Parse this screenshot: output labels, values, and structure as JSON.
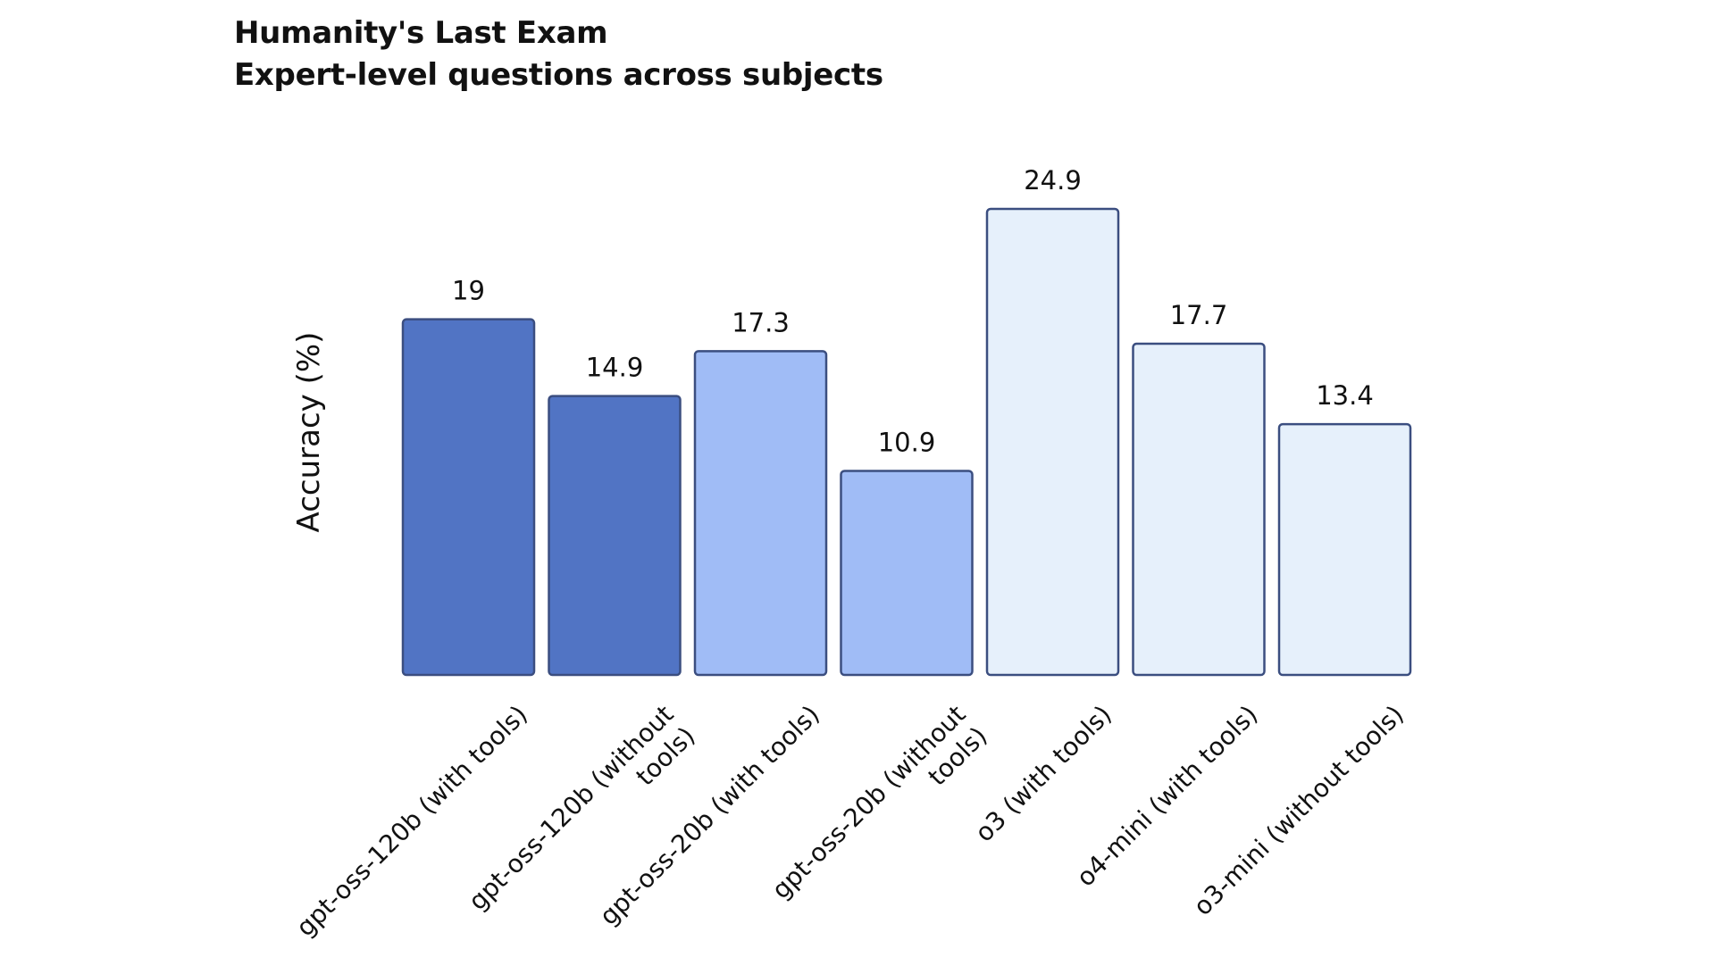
{
  "chart_data": {
    "type": "bar",
    "title_lines": [
      "Humanity's Last Exam",
      "Expert-level questions across subjects"
    ],
    "ylabel": "Accuracy (%)",
    "xlabel": "",
    "ylim": [
      0,
      24.9
    ],
    "grid": false,
    "legend": "none",
    "categories": [
      "gpt-oss-120b (with tools)",
      "gpt-oss-120b (without tools)",
      "gpt-oss-20b (with tools)",
      "gpt-oss-20b (without tools)",
      "o3 (with tools)",
      "o4-mini (with tools)",
      "o3-mini (without tools)"
    ],
    "category_label_lines": [
      [
        "gpt-oss-120b (with tools)"
      ],
      [
        "gpt-oss-120b (without",
        "tools)"
      ],
      [
        "gpt-oss-20b (with tools)"
      ],
      [
        "gpt-oss-20b (without",
        "tools)"
      ],
      [
        "o3 (with tools)"
      ],
      [
        "o4-mini (with tools)"
      ],
      [
        "o3-mini (without tools)"
      ]
    ],
    "values": [
      19,
      14.9,
      17.3,
      10.9,
      24.9,
      17.7,
      13.4
    ],
    "value_labels": [
      "19",
      "14.9",
      "17.3",
      "10.9",
      "24.9",
      "17.7",
      "13.4"
    ],
    "colors": [
      "#5174c4",
      "#5174c4",
      "#a0bcf6",
      "#a0bcf6",
      "#e6f0fb",
      "#e6f0fb",
      "#e6f0fb"
    ],
    "bar_stroke": "#3b4e80"
  }
}
